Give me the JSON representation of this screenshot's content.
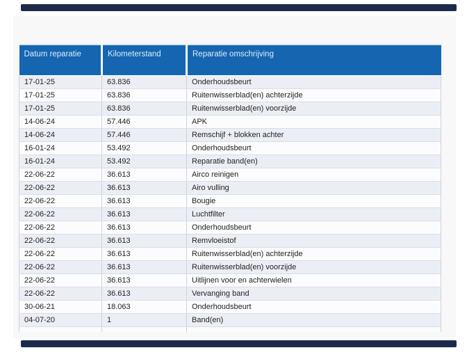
{
  "page": {
    "background": "#ffffff",
    "panel_background": "#f8f8f9"
  },
  "dividers": {
    "top_bar_color": "#1b2b4a",
    "bottom_bar_color": "#1b2b4a"
  },
  "table": {
    "header": {
      "columns": [
        "Datum reparatie",
        "Kilometerstand",
        "Reparatie omschrijving"
      ],
      "background": "#1565b0",
      "text_color": "#ddeefb"
    },
    "row_colors": {
      "odd": "#eceef6",
      "even": "#fcfcfe"
    },
    "rows": [
      {
        "date": "17-01-25",
        "km": "63.836",
        "desc": "Onderhoudsbeurt"
      },
      {
        "date": "17-01-25",
        "km": "63.836",
        "desc": "Ruitenwisserblad(en) achterzijde"
      },
      {
        "date": "17-01-25",
        "km": "63.836",
        "desc": "Ruitenwisserblad(en) voorzijde"
      },
      {
        "date": "14-06-24",
        "km": "57.446",
        "desc": "APK"
      },
      {
        "date": "14-06-24",
        "km": "57.446",
        "desc": "Remschijf + blokken achter"
      },
      {
        "date": "16-01-24",
        "km": "53.492",
        "desc": "Onderhoudsbeurt"
      },
      {
        "date": "16-01-24",
        "km": "53.492",
        "desc": "Reparatie band(en)"
      },
      {
        "date": "22-06-22",
        "km": "36.613",
        "desc": "Airco reinigen"
      },
      {
        "date": "22-06-22",
        "km": "36.613",
        "desc": "Airo vulling"
      },
      {
        "date": "22-06-22",
        "km": "36.613",
        "desc": "Bougie"
      },
      {
        "date": "22-06-22",
        "km": "36.613",
        "desc": "Luchtfilter"
      },
      {
        "date": "22-06-22",
        "km": "36.613",
        "desc": "Onderhoudsbeurt"
      },
      {
        "date": "22-06-22",
        "km": "36.613",
        "desc": "Remvloeistof"
      },
      {
        "date": "22-06-22",
        "km": "36.613",
        "desc": "Ruitenwisserblad(en) achterzijde"
      },
      {
        "date": "22-06-22",
        "km": "36.613",
        "desc": "Ruitenwisserblad(en) voorzijde"
      },
      {
        "date": "22-06-22",
        "km": "36.613",
        "desc": "Uitlijnen voor en achterwielen"
      },
      {
        "date": "22-06-22",
        "km": "36.613",
        "desc": "Vervanging band"
      },
      {
        "date": "30-06-21",
        "km": "18.063",
        "desc": "Onderhoudsbeurt"
      },
      {
        "date": "04-07-20",
        "km": "1",
        "desc": "Band(en)"
      }
    ]
  }
}
